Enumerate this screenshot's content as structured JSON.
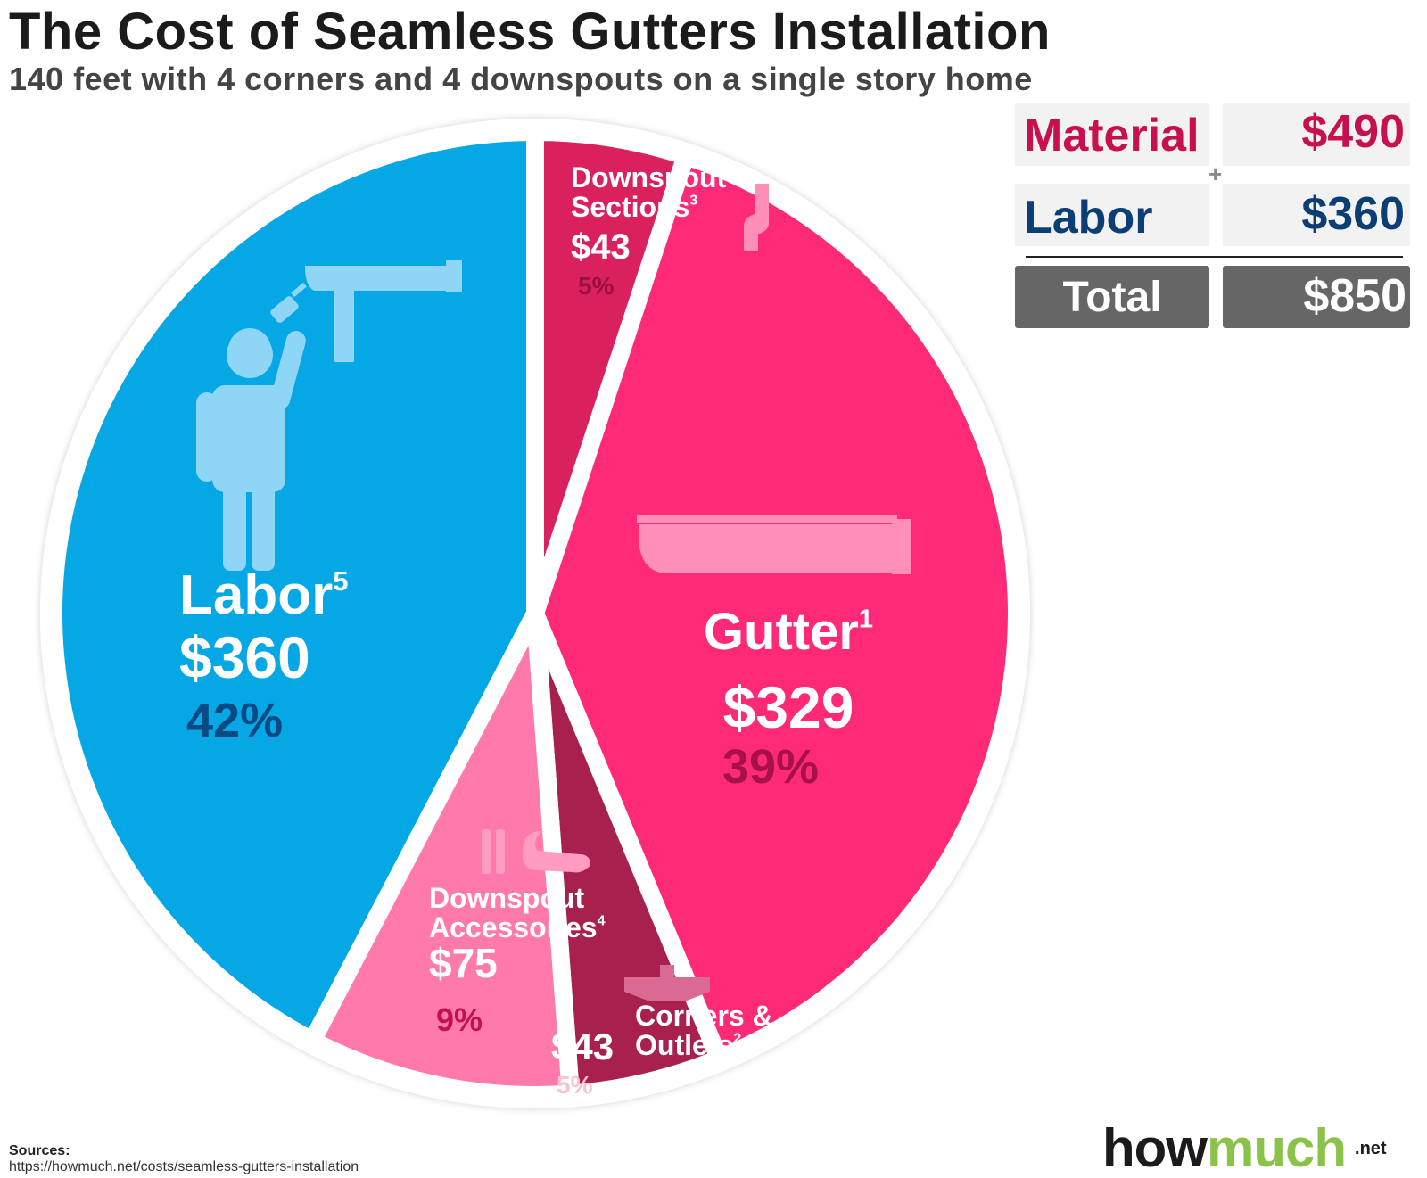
{
  "title": "The Cost of Seamless Gutters Installation",
  "subtitle": "140 feet with 4 corners and 4 downspouts on a single story home",
  "chart_data": {
    "type": "pie",
    "slices": [
      {
        "name": "Labor",
        "sup": "5",
        "value_label": "$360",
        "value": 360,
        "percent": 42,
        "percent_label": "42%",
        "color": "#05a8e5"
      },
      {
        "name": "Downspout Sections",
        "sup": "3",
        "value_label": "$43",
        "value": 43,
        "percent": 5,
        "percent_label": "5%",
        "color": "#d9215e"
      },
      {
        "name": "Gutter",
        "sup": "1",
        "value_label": "$329",
        "value": 329,
        "percent": 39,
        "percent_label": "39%",
        "color": "#ff2a77"
      },
      {
        "name": "Corners & Outlets",
        "sup": "2",
        "value_label": "$43",
        "value": 43,
        "percent": 5,
        "percent_label": "5%",
        "color": "#a8214e"
      },
      {
        "name": "Downspout Accessories",
        "sup": "4",
        "value_label": "$75",
        "value": 75,
        "percent": 9,
        "percent_label": "9%",
        "color": "#ff7aab"
      }
    ]
  },
  "summary": {
    "material_label": "Material",
    "material_value": "$490",
    "plus": "+",
    "labor_label": "Labor",
    "labor_value": "$360",
    "total_label": "Total",
    "total_value": "$850",
    "material_color": "#c8104f",
    "labor_color": "#0b3f73"
  },
  "sources": {
    "label": "Sources:",
    "url": "https://howmuch.net/costs/seamless-gutters-installation"
  },
  "logo": {
    "how": "how",
    "much": "much",
    "net": ".net"
  }
}
